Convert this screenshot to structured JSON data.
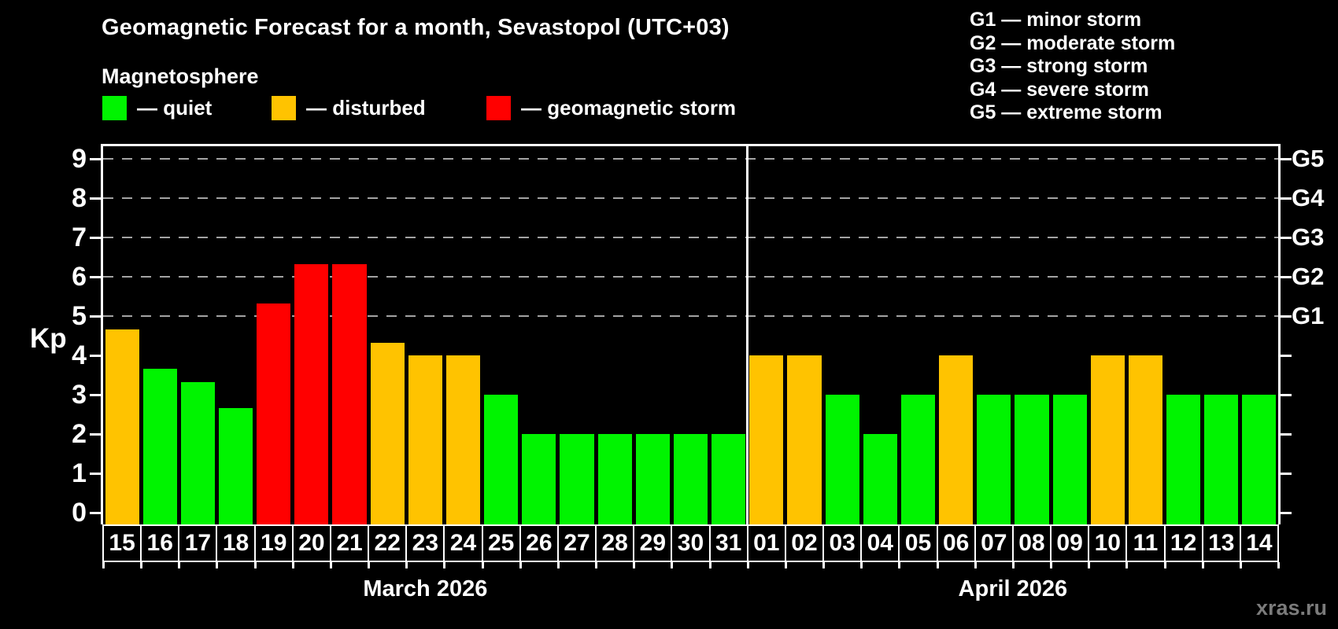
{
  "title": "Geomagnetic Forecast for a month, Sevastopol (UTC+03)",
  "magnetosphere": {
    "heading": "Magnetosphere",
    "items": [
      {
        "key": "quiet",
        "label": "— quiet",
        "color": "#00f400"
      },
      {
        "key": "disturbed",
        "label": "— disturbed",
        "color": "#ffc300"
      },
      {
        "key": "storm",
        "label": "— geomagnetic storm",
        "color": "#ff0000"
      }
    ]
  },
  "g_legend": [
    "G1 — minor storm",
    "G2 — moderate storm",
    "G3 — strong storm",
    "G4 — severe storm",
    "G5 — extreme storm"
  ],
  "watermark": "xras.ru",
  "colors": {
    "background": "#000000",
    "text": "#ffffff",
    "grid": "#a3a3a3",
    "axis": "#ffffff",
    "watermark": "#7b7b7b",
    "quiet": "#00f400",
    "disturbed": "#ffc300",
    "storm": "#ff0000"
  },
  "chart_data": {
    "type": "bar",
    "title": "Geomagnetic Forecast for a month, Sevastopol (UTC+03)",
    "ylabel": "Kp",
    "ylim": [
      -0.3,
      9.35
    ],
    "yticks": [
      0,
      1,
      2,
      3,
      4,
      5,
      6,
      7,
      8,
      9
    ],
    "gridlines": [
      5,
      6,
      7,
      8,
      9
    ],
    "grid_style": "dashed",
    "legend_position": "top",
    "right_axis": [
      {
        "label": "G1",
        "value": 5
      },
      {
        "label": "G2",
        "value": 6
      },
      {
        "label": "G3",
        "value": 7
      },
      {
        "label": "G4",
        "value": 8
      },
      {
        "label": "G5",
        "value": 9
      }
    ],
    "months": [
      {
        "label": "March 2026",
        "days": [
          {
            "day": "15",
            "kp": 4.67,
            "status": "disturbed"
          },
          {
            "day": "16",
            "kp": 3.67,
            "status": "quiet"
          },
          {
            "day": "17",
            "kp": 3.33,
            "status": "quiet"
          },
          {
            "day": "18",
            "kp": 2.67,
            "status": "quiet"
          },
          {
            "day": "19",
            "kp": 5.33,
            "status": "storm"
          },
          {
            "day": "20",
            "kp": 6.33,
            "status": "storm"
          },
          {
            "day": "21",
            "kp": 6.33,
            "status": "storm"
          },
          {
            "day": "22",
            "kp": 4.33,
            "status": "disturbed"
          },
          {
            "day": "23",
            "kp": 4,
            "status": "disturbed"
          },
          {
            "day": "24",
            "kp": 4,
            "status": "disturbed"
          },
          {
            "day": "25",
            "kp": 3,
            "status": "quiet"
          },
          {
            "day": "26",
            "kp": 2,
            "status": "quiet"
          },
          {
            "day": "27",
            "kp": 2,
            "status": "quiet"
          },
          {
            "day": "28",
            "kp": 2,
            "status": "quiet"
          },
          {
            "day": "29",
            "kp": 2,
            "status": "quiet"
          },
          {
            "day": "30",
            "kp": 2,
            "status": "quiet"
          },
          {
            "day": "31",
            "kp": 2,
            "status": "quiet"
          }
        ]
      },
      {
        "label": "April 2026",
        "days": [
          {
            "day": "01",
            "kp": 4,
            "status": "disturbed"
          },
          {
            "day": "02",
            "kp": 4,
            "status": "disturbed"
          },
          {
            "day": "03",
            "kp": 3,
            "status": "quiet"
          },
          {
            "day": "04",
            "kp": 2,
            "status": "quiet"
          },
          {
            "day": "05",
            "kp": 3,
            "status": "quiet"
          },
          {
            "day": "06",
            "kp": 4,
            "status": "disturbed"
          },
          {
            "day": "07",
            "kp": 3,
            "status": "quiet"
          },
          {
            "day": "08",
            "kp": 3,
            "status": "quiet"
          },
          {
            "day": "09",
            "kp": 3,
            "status": "quiet"
          },
          {
            "day": "10",
            "kp": 4,
            "status": "disturbed"
          },
          {
            "day": "11",
            "kp": 4,
            "status": "disturbed"
          },
          {
            "day": "12",
            "kp": 3,
            "status": "quiet"
          },
          {
            "day": "13",
            "kp": 3,
            "status": "quiet"
          },
          {
            "day": "14",
            "kp": 3,
            "status": "quiet"
          }
        ]
      }
    ]
  }
}
